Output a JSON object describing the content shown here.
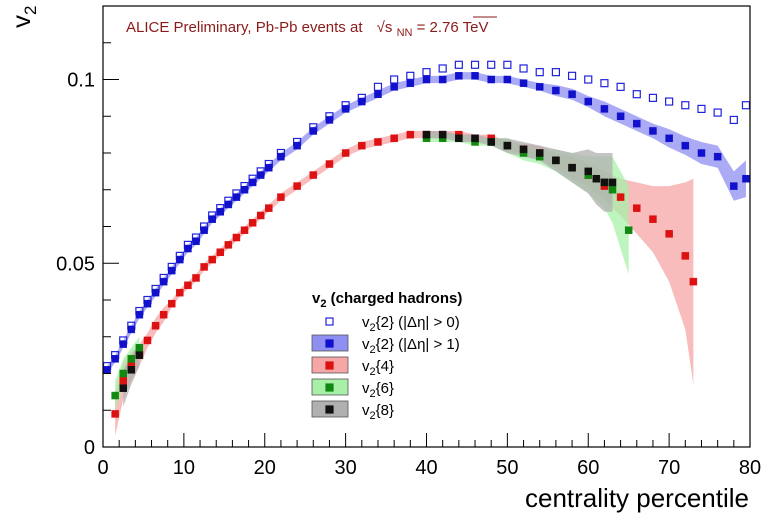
{
  "chart_data": {
    "type": "scatter",
    "title": "ALICE Preliminary, Pb-Pb events at",
    "title_energy_symbol": "√s",
    "title_energy_subscript": "NN",
    "title_energy_value": " = 2.76 TeV",
    "xlabel": "centrality percentile",
    "ylabel": "v",
    "ylabel_subscript": "2",
    "xlim": [
      0,
      80
    ],
    "ylim": [
      0,
      0.12
    ],
    "xticks": [
      "0",
      "10",
      "20",
      "30",
      "40",
      "50",
      "60",
      "70",
      "80"
    ],
    "yticks": [
      "0",
      "0.05",
      "0.1"
    ],
    "legend_title": "v",
    "legend_title_subscript": "2",
    "legend_title_rest": " (charged hadrons)",
    "series": [
      {
        "name": "v2{2} (|Δη| > 0)",
        "label_sub": "2",
        "label_rest": "{2} (|Δη| > 0)",
        "color": "#2222dd",
        "marker": "open-square",
        "band": false,
        "x": [
          0.5,
          1.5,
          2.5,
          3.5,
          4.5,
          5.5,
          6.5,
          7.5,
          8.5,
          9.5,
          10.5,
          11.5,
          12.5,
          13.5,
          14.5,
          15.5,
          16.5,
          17.5,
          18.5,
          19.5,
          20.5,
          22,
          24,
          26,
          28,
          30,
          32,
          34,
          36,
          38,
          40,
          42,
          44,
          46,
          48,
          50,
          52,
          54,
          56,
          58,
          60,
          62,
          64,
          66,
          68,
          70,
          72,
          74,
          76,
          78,
          79.5
        ],
        "y": [
          0.022,
          0.025,
          0.029,
          0.033,
          0.037,
          0.04,
          0.043,
          0.046,
          0.049,
          0.052,
          0.055,
          0.057,
          0.06,
          0.063,
          0.065,
          0.067,
          0.069,
          0.071,
          0.073,
          0.075,
          0.077,
          0.08,
          0.083,
          0.087,
          0.09,
          0.093,
          0.095,
          0.098,
          0.1,
          0.101,
          0.102,
          0.103,
          0.104,
          0.104,
          0.104,
          0.104,
          0.103,
          0.102,
          0.102,
          0.101,
          0.1,
          0.099,
          0.098,
          0.096,
          0.095,
          0.094,
          0.093,
          0.092,
          0.091,
          0.089,
          0.093
        ]
      },
      {
        "name": "v2{2} (|Δη| > 1)",
        "label_sub": "2",
        "label_rest": "{2} (|Δη| > 1)",
        "color": "#1111cc",
        "band_color": "#8f8ff2",
        "marker": "filled-square",
        "band": true,
        "x": [
          0.5,
          1.5,
          2.5,
          3.5,
          4.5,
          5.5,
          6.5,
          7.5,
          8.5,
          9.5,
          10.5,
          11.5,
          12.5,
          13.5,
          14.5,
          15.5,
          16.5,
          17.5,
          18.5,
          19.5,
          20.5,
          22,
          24,
          26,
          28,
          30,
          32,
          34,
          36,
          38,
          40,
          42,
          44,
          46,
          48,
          50,
          52,
          54,
          56,
          58,
          60,
          62,
          64,
          66,
          68,
          70,
          72,
          74,
          76,
          78,
          79.5
        ],
        "y": [
          0.021,
          0.024,
          0.028,
          0.032,
          0.036,
          0.039,
          0.042,
          0.045,
          0.048,
          0.051,
          0.054,
          0.056,
          0.059,
          0.062,
          0.064,
          0.066,
          0.068,
          0.07,
          0.072,
          0.074,
          0.076,
          0.079,
          0.082,
          0.086,
          0.089,
          0.092,
          0.094,
          0.096,
          0.098,
          0.099,
          0.1,
          0.1,
          0.101,
          0.101,
          0.1,
          0.1,
          0.099,
          0.098,
          0.097,
          0.096,
          0.094,
          0.092,
          0.09,
          0.088,
          0.086,
          0.084,
          0.082,
          0.08,
          0.079,
          0.071,
          0.073
        ],
        "err": [
          0.001,
          0.001,
          0.001,
          0.001,
          0.001,
          0.001,
          0.001,
          0.001,
          0.001,
          0.001,
          0.001,
          0.001,
          0.001,
          0.001,
          0.001,
          0.001,
          0.001,
          0.001,
          0.001,
          0.001,
          0.001,
          0.001,
          0.001,
          0.001,
          0.001,
          0.001,
          0.001,
          0.001,
          0.001,
          0.001,
          0.001,
          0.001,
          0.001,
          0.001,
          0.001,
          0.001,
          0.001,
          0.001,
          0.0015,
          0.0015,
          0.0015,
          0.002,
          0.002,
          0.002,
          0.002,
          0.0025,
          0.0025,
          0.003,
          0.003,
          0.004,
          0.005
        ]
      },
      {
        "name": "v2{4}",
        "label_sub": "2",
        "label_rest": "{4}",
        "color": "#dd1111",
        "band_color": "#f6a6a6",
        "marker": "filled-square",
        "band": true,
        "x": [
          1.5,
          2.5,
          3.5,
          4.5,
          5.5,
          6.5,
          7.5,
          8.5,
          9.5,
          10.5,
          11.5,
          12.5,
          13.5,
          14.5,
          15.5,
          16.5,
          17.5,
          18.5,
          19.5,
          20.5,
          22,
          24,
          26,
          28,
          30,
          32,
          34,
          36,
          38,
          40,
          42,
          44,
          46,
          48,
          50,
          52,
          54,
          56,
          58,
          60,
          62,
          64,
          66,
          68,
          70,
          72,
          73
        ],
        "y": [
          0.009,
          0.018,
          0.022,
          0.025,
          0.029,
          0.033,
          0.036,
          0.039,
          0.042,
          0.044,
          0.046,
          0.049,
          0.051,
          0.053,
          0.055,
          0.057,
          0.059,
          0.061,
          0.063,
          0.065,
          0.068,
          0.071,
          0.074,
          0.077,
          0.08,
          0.082,
          0.083,
          0.084,
          0.085,
          0.085,
          0.085,
          0.085,
          0.084,
          0.084,
          0.082,
          0.081,
          0.08,
          0.078,
          0.076,
          0.074,
          0.071,
          0.068,
          0.065,
          0.062,
          0.058,
          0.052,
          0.045
        ],
        "err": [
          0.006,
          0.005,
          0.004,
          0.003,
          0.002,
          0.002,
          0.002,
          0.001,
          0.001,
          0.001,
          0.001,
          0.001,
          0.001,
          0.001,
          0.001,
          0.001,
          0.001,
          0.001,
          0.001,
          0.001,
          0.001,
          0.001,
          0.001,
          0.001,
          0.001,
          0.001,
          0.001,
          0.001,
          0.001,
          0.001,
          0.001,
          0.001,
          0.001,
          0.001,
          0.001,
          0.0015,
          0.002,
          0.002,
          0.003,
          0.003,
          0.004,
          0.005,
          0.007,
          0.009,
          0.013,
          0.02,
          0.028
        ]
      },
      {
        "name": "v2{6}",
        "label_sub": "2",
        "label_rest": "{6}",
        "color": "#118811",
        "band_color": "#a8f0a8",
        "marker": "filled-square",
        "band": true,
        "x": [
          1.5,
          2.5,
          3.5,
          4.5,
          40,
          42,
          44,
          46,
          48,
          50,
          52,
          54,
          56,
          58,
          60,
          62,
          63,
          65
        ],
        "y": [
          0.014,
          0.02,
          0.024,
          0.027,
          0.084,
          0.084,
          0.084,
          0.083,
          0.083,
          0.082,
          0.08,
          0.079,
          0.078,
          0.076,
          0.074,
          0.072,
          0.07,
          0.059
        ],
        "err": [
          0.004,
          0.004,
          0.003,
          0.003,
          0.001,
          0.001,
          0.001,
          0.001,
          0.001,
          0.002,
          0.002,
          0.002,
          0.003,
          0.004,
          0.005,
          0.007,
          0.009,
          0.012
        ]
      },
      {
        "name": "v2{8}",
        "label_sub": "2",
        "label_rest": "{8}",
        "color": "#111111",
        "band_color": "#b0b0b0",
        "marker": "filled-square",
        "band": true,
        "x": [
          2.5,
          3.5,
          4.5,
          40,
          42,
          44,
          46,
          48,
          50,
          52,
          54,
          56,
          58,
          60,
          61,
          62,
          63
        ],
        "y": [
          0.016,
          0.021,
          0.025,
          0.085,
          0.085,
          0.084,
          0.084,
          0.083,
          0.082,
          0.081,
          0.08,
          0.078,
          0.076,
          0.075,
          0.073,
          0.072,
          0.072
        ],
        "err": [
          0.005,
          0.004,
          0.003,
          0.001,
          0.001,
          0.001,
          0.001,
          0.001,
          0.002,
          0.002,
          0.002,
          0.003,
          0.004,
          0.006,
          0.007,
          0.008,
          0.008
        ]
      }
    ]
  }
}
